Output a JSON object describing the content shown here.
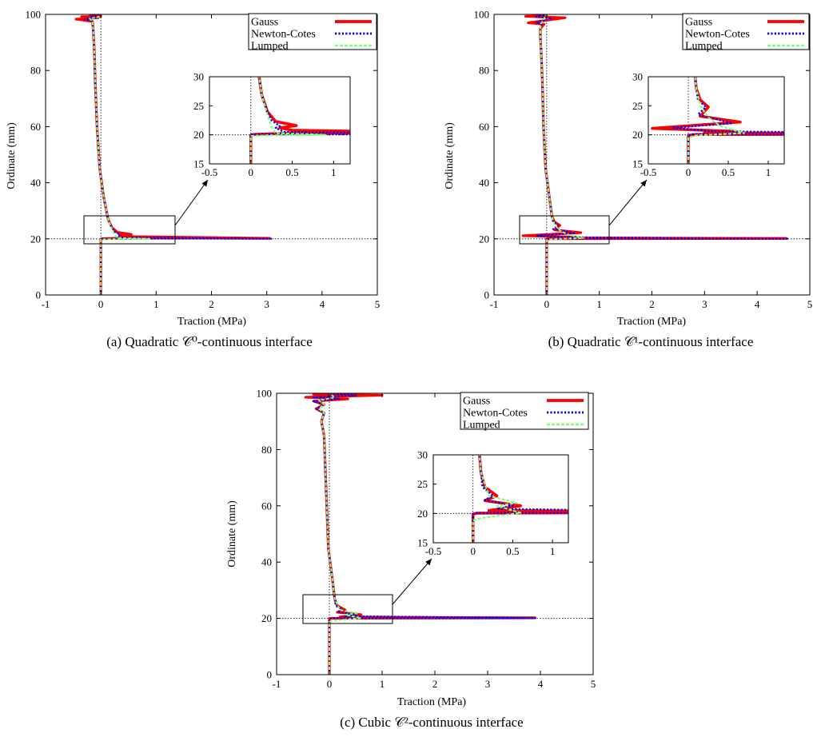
{
  "chart_data": [
    {
      "type": "line",
      "caption": "(a) Quadratic 𝒞⁰-continuous interface",
      "xlabel": "Traction (MPa)",
      "ylabel": "Ordinate (mm)",
      "xlim": [
        -1,
        5
      ],
      "ylim": [
        0,
        100
      ],
      "xticks": [
        "-1",
        "0",
        "1",
        "2",
        "3",
        "4",
        "5"
      ],
      "yticks": [
        "0",
        "20",
        "40",
        "60",
        "80",
        "100"
      ],
      "legend": "top-right",
      "reference_lines": {
        "x": 0,
        "y": 20
      },
      "series": [
        {
          "name": "Gauss",
          "color": "#ff0000",
          "style": "solid",
          "points": [
            [
              0,
              0
            ],
            [
              0,
              19.9
            ],
            [
              0.02,
              20.05
            ],
            [
              0.45,
              20.3
            ],
            [
              3.05,
              20.2
            ],
            [
              0.5,
              20.8
            ],
            [
              0.35,
              21.2
            ],
            [
              0.55,
              21.6
            ],
            [
              0.3,
              22.3
            ],
            [
              0.2,
              24
            ],
            [
              0.13,
              27
            ],
            [
              0.05,
              35
            ],
            [
              -0.02,
              45
            ],
            [
              -0.07,
              60
            ],
            [
              -0.1,
              75
            ],
            [
              -0.12,
              88
            ],
            [
              -0.14,
              95
            ],
            [
              -0.15,
              97.5
            ],
            [
              -0.45,
              98.3
            ],
            [
              -0.05,
              98.8
            ],
            [
              -0.35,
              99.2
            ],
            [
              0,
              99.35
            ],
            [
              -0.2,
              99.45
            ],
            [
              -0.02,
              99.5
            ],
            [
              -0.1,
              99.6
            ],
            [
              -0.01,
              99.7
            ],
            [
              -0.02,
              99.8
            ],
            [
              -0.01,
              99.9
            ],
            [
              0,
              100
            ]
          ]
        },
        {
          "name": "Newton-Cotes",
          "color": "#0000ff",
          "style": "dotted",
          "points": [
            [
              0,
              0
            ],
            [
              0,
              19.9
            ],
            [
              0.02,
              20.1
            ],
            [
              3.1,
              20.05
            ],
            [
              0.4,
              20.5
            ],
            [
              0.3,
              21.2
            ],
            [
              0.35,
              21.5
            ],
            [
              0.25,
              22.5
            ],
            [
              0.2,
              24
            ],
            [
              0.13,
              27
            ],
            [
              0.05,
              35
            ],
            [
              -0.02,
              45
            ],
            [
              -0.07,
              60
            ],
            [
              -0.1,
              75
            ],
            [
              -0.12,
              88
            ],
            [
              -0.14,
              95
            ],
            [
              -0.15,
              97.5
            ],
            [
              -0.3,
              98.3
            ],
            [
              -0.05,
              98.8
            ],
            [
              -0.2,
              99.2
            ],
            [
              -0.02,
              99.5
            ],
            [
              0,
              100
            ]
          ]
        },
        {
          "name": "Lumped",
          "color": "#7fff7f",
          "style": "dashed",
          "points": [
            [
              0,
              0
            ],
            [
              0,
              19.8
            ],
            [
              0.2,
              19.9
            ],
            [
              0.9,
              20.0
            ],
            [
              0.3,
              20.3
            ],
            [
              0.25,
              21.3
            ],
            [
              0.2,
              23.5
            ],
            [
              0.13,
              27
            ],
            [
              0.05,
              35
            ],
            [
              -0.02,
              45
            ],
            [
              -0.07,
              60
            ],
            [
              -0.1,
              75
            ],
            [
              -0.12,
              88
            ],
            [
              -0.14,
              95
            ],
            [
              -0.15,
              97.5
            ],
            [
              -0.2,
              98.5
            ],
            [
              -0.05,
              99
            ],
            [
              0,
              100
            ]
          ]
        }
      ],
      "inset": {
        "xlim": [
          -0.5,
          1.2
        ],
        "ylim": [
          15,
          30
        ],
        "xticks": [
          "-0.5",
          "0",
          "0.5",
          "1"
        ],
        "yticks": [
          "15",
          "20",
          "25",
          "30"
        ]
      }
    },
    {
      "type": "line",
      "caption": "(b) Quadratic 𝒞¹-continuous interface",
      "xlabel": "Traction (MPa)",
      "ylabel": "Ordinate (mm)",
      "xlim": [
        -1,
        5
      ],
      "ylim": [
        0,
        100
      ],
      "xticks": [
        "-1",
        "0",
        "1",
        "2",
        "3",
        "4",
        "5"
      ],
      "yticks": [
        "0",
        "20",
        "40",
        "60",
        "80",
        "100"
      ],
      "legend": "top-right",
      "reference_lines": {
        "x": 0,
        "y": 20
      },
      "series": [
        {
          "name": "Gauss",
          "color": "#ff0000",
          "style": "solid",
          "points": [
            [
              0,
              0
            ],
            [
              0,
              19.9
            ],
            [
              0.1,
              20.05
            ],
            [
              4.55,
              20.15
            ],
            [
              0.2,
              20.35
            ],
            [
              0.6,
              20.6
            ],
            [
              -0.45,
              21.1
            ],
            [
              0.65,
              22.2
            ],
            [
              0.15,
              23.2
            ],
            [
              0.25,
              24.8
            ],
            [
              0.15,
              26
            ],
            [
              0.1,
              28
            ],
            [
              0.05,
              35
            ],
            [
              -0.02,
              45
            ],
            [
              -0.06,
              60
            ],
            [
              -0.08,
              75
            ],
            [
              -0.1,
              85
            ],
            [
              -0.12,
              92
            ],
            [
              -0.12,
              95
            ],
            [
              -0.05,
              96.5
            ],
            [
              -0.35,
              97
            ],
            [
              0.35,
              98.8
            ],
            [
              -0.4,
              99.3
            ],
            [
              0,
              99.5
            ],
            [
              -0.1,
              99.7
            ],
            [
              0,
              100
            ]
          ]
        },
        {
          "name": "Newton-Cotes",
          "color": "#0000ff",
          "style": "dotted",
          "points": [
            [
              0,
              0
            ],
            [
              0,
              19.9
            ],
            [
              0.05,
              20.1
            ],
            [
              4.6,
              20.05
            ],
            [
              0.3,
              20.6
            ],
            [
              -0.2,
              21.2
            ],
            [
              0.55,
              22
            ],
            [
              0.12,
              23.5
            ],
            [
              0.22,
              24.8
            ],
            [
              0.12,
              26
            ],
            [
              0.1,
              28
            ],
            [
              0.05,
              35
            ],
            [
              -0.02,
              45
            ],
            [
              -0.06,
              60
            ],
            [
              -0.08,
              75
            ],
            [
              -0.1,
              85
            ],
            [
              -0.12,
              92
            ],
            [
              -0.12,
              95
            ],
            [
              -0.1,
              96.5
            ],
            [
              -0.2,
              97.2
            ],
            [
              0.1,
              98.5
            ],
            [
              -0.2,
              99.2
            ],
            [
              0,
              100
            ]
          ]
        },
        {
          "name": "Lumped",
          "color": "#7fff7f",
          "style": "dashed",
          "points": [
            [
              0,
              0
            ],
            [
              0,
              19.5
            ],
            [
              0.1,
              19.9
            ],
            [
              0.7,
              20.3
            ],
            [
              0.4,
              21.5
            ],
            [
              0.25,
              23
            ],
            [
              0.15,
              25
            ],
            [
              0.1,
              28
            ],
            [
              0.05,
              35
            ],
            [
              -0.02,
              45
            ],
            [
              -0.06,
              60
            ],
            [
              -0.08,
              75
            ],
            [
              -0.1,
              85
            ],
            [
              -0.12,
              92
            ],
            [
              -0.12,
              95
            ],
            [
              -0.1,
              97
            ],
            [
              0,
              100
            ]
          ]
        }
      ],
      "inset": {
        "xlim": [
          -0.5,
          1.2
        ],
        "ylim": [
          15,
          30
        ],
        "xticks": [
          "-0.5",
          "0",
          "0.5",
          "1"
        ],
        "yticks": [
          "15",
          "20",
          "25",
          "30"
        ]
      }
    },
    {
      "type": "line",
      "caption": "(c) Cubic 𝒞²-continuous interface",
      "xlabel": "Traction (MPa)",
      "ylabel": "Ordinate (mm)",
      "xlim": [
        -1,
        5
      ],
      "ylim": [
        0,
        100
      ],
      "xticks": [
        "-1",
        "0",
        "1",
        "2",
        "3",
        "4",
        "5"
      ],
      "yticks": [
        "0",
        "20",
        "40",
        "60",
        "80",
        "100"
      ],
      "legend": "top-right",
      "reference_lines": {
        "x": 0,
        "y": 20
      },
      "series": [
        {
          "name": "Gauss",
          "color": "#ff0000",
          "style": "solid",
          "points": [
            [
              0,
              0
            ],
            [
              0,
              19.9
            ],
            [
              0.05,
              20.05
            ],
            [
              3.9,
              20.2
            ],
            [
              0.2,
              20.5
            ],
            [
              0.6,
              21.3
            ],
            [
              0.15,
              22.2
            ],
            [
              0.3,
              23
            ],
            [
              0.15,
              24.5
            ],
            [
              0.1,
              27
            ],
            [
              0.05,
              35
            ],
            [
              -0.02,
              45
            ],
            [
              -0.05,
              60
            ],
            [
              -0.08,
              75
            ],
            [
              -0.1,
              85
            ],
            [
              -0.15,
              90
            ],
            [
              -0.1,
              93
            ],
            [
              -0.25,
              94.5
            ],
            [
              -0.1,
              96
            ],
            [
              -0.3,
              97.2
            ],
            [
              0.35,
              98
            ],
            [
              -0.45,
              98.6
            ],
            [
              1.0,
              99.3
            ],
            [
              -0.3,
              99.6
            ],
            [
              0,
              100
            ]
          ]
        },
        {
          "name": "Newton-Cotes",
          "color": "#0000ff",
          "style": "dotted",
          "points": [
            [
              0,
              0
            ],
            [
              0,
              19.9
            ],
            [
              0.05,
              20.1
            ],
            [
              3.9,
              20.05
            ],
            [
              0.3,
              20.8
            ],
            [
              0.5,
              21.3
            ],
            [
              0.15,
              22.3
            ],
            [
              0.25,
              23
            ],
            [
              0.12,
              24.5
            ],
            [
              0.1,
              27
            ],
            [
              0.05,
              35
            ],
            [
              -0.02,
              45
            ],
            [
              -0.05,
              60
            ],
            [
              -0.08,
              75
            ],
            [
              -0.1,
              85
            ],
            [
              -0.15,
              90
            ],
            [
              -0.1,
              93
            ],
            [
              -0.25,
              94.5
            ],
            [
              -0.1,
              96
            ],
            [
              -0.3,
              97.2
            ],
            [
              0.2,
              98
            ],
            [
              -0.3,
              98.6
            ],
            [
              0.5,
              99.3
            ],
            [
              0,
              100
            ]
          ]
        },
        {
          "name": "Lumped",
          "color": "#7fff7f",
          "style": "dashed",
          "points": [
            [
              0,
              0
            ],
            [
              0,
              18.8
            ],
            [
              0.1,
              19.2
            ],
            [
              0.6,
              20.1
            ],
            [
              0.3,
              21.3
            ],
            [
              0.55,
              21.8
            ],
            [
              0.2,
              23
            ],
            [
              0.1,
              27
            ],
            [
              0.05,
              35
            ],
            [
              -0.02,
              45
            ],
            [
              -0.05,
              60
            ],
            [
              -0.08,
              75
            ],
            [
              -0.1,
              85
            ],
            [
              -0.15,
              90
            ],
            [
              -0.1,
              93
            ],
            [
              -0.2,
              94.5
            ],
            [
              -0.1,
              96
            ],
            [
              -0.2,
              97.5
            ],
            [
              0.1,
              98.5
            ],
            [
              0,
              100
            ]
          ]
        }
      ],
      "inset": {
        "xlim": [
          -0.5,
          1.2
        ],
        "ylim": [
          15,
          30
        ],
        "xticks": [
          "-0.5",
          "0",
          "0.5",
          "1"
        ],
        "yticks": [
          "15",
          "20",
          "25",
          "30"
        ]
      }
    }
  ]
}
